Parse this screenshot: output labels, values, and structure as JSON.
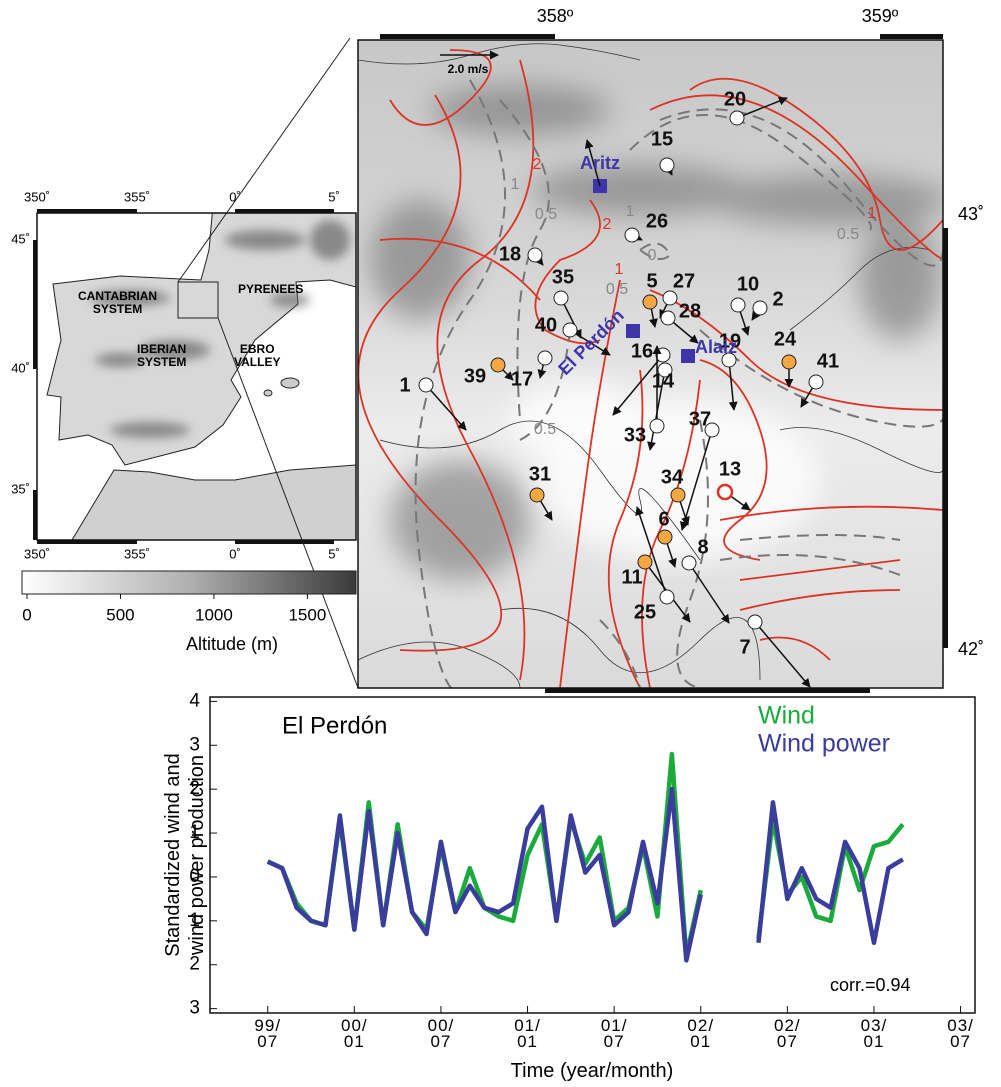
{
  "inset": {
    "lon_labels": [
      "350˚",
      "355˚",
      "0˚",
      "5˚"
    ],
    "lat_labels": [
      "45˚",
      "40˚",
      "35˚"
    ],
    "regions": [
      "CANTABRIAN\nSYSTEM",
      "PYRENEES",
      "IBERIAN\nSYSTEM",
      "EBRO\nVALLEY"
    ]
  },
  "colorbar": {
    "lim": [
      0,
      1760
    ],
    "ticks": [
      0,
      500,
      1000,
      1500
    ],
    "label": "Altitude (m)"
  },
  "map": {
    "lon_labels": [
      "358º",
      "359º"
    ],
    "lat_labels": [
      "43˚",
      "42˚"
    ],
    "scale_label": "2.0 m/s",
    "sites": [
      "Aritz",
      "El Perdón",
      "Alaiz"
    ],
    "stations": [
      {
        "label": "20",
        "color": "#ffffff"
      },
      {
        "label": "15",
        "color": "#ffffff"
      },
      {
        "label": "26",
        "color": "#ffffff"
      },
      {
        "label": "18",
        "color": "#ffffff"
      },
      {
        "label": "35",
        "color": "#ffffff"
      },
      {
        "label": "5",
        "color": "#f5a742"
      },
      {
        "label": "27",
        "color": "#ffffff"
      },
      {
        "label": "28",
        "color": "#ffffff"
      },
      {
        "label": "10",
        "color": "#ffffff"
      },
      {
        "label": "2",
        "color": "#ffffff"
      },
      {
        "label": "40",
        "color": "#ffffff"
      },
      {
        "label": "16",
        "color": "#ffffff"
      },
      {
        "label": "14",
        "color": "#ffffff"
      },
      {
        "label": "19",
        "color": "#ffffff"
      },
      {
        "label": "24",
        "color": "#f5a742"
      },
      {
        "label": "41",
        "color": "#ffffff"
      },
      {
        "label": "39",
        "color": "#f5a742"
      },
      {
        "label": "17",
        "color": "#ffffff"
      },
      {
        "label": "1",
        "color": "#ffffff"
      },
      {
        "label": "33",
        "color": "#ffffff"
      },
      {
        "label": "37",
        "color": "#ffffff"
      },
      {
        "label": "34",
        "color": "#f5a742"
      },
      {
        "label": "13",
        "color": "#ffffff"
      },
      {
        "label": "31",
        "color": "#f5a742"
      },
      {
        "label": "6",
        "color": "#f5a742"
      },
      {
        "label": "8",
        "color": "#ffffff"
      },
      {
        "label": "11",
        "color": "#f5a742"
      },
      {
        "label": "25",
        "color": "#ffffff"
      },
      {
        "label": "7",
        "color": "#ffffff"
      }
    ],
    "contour_labels": [
      "2",
      "1",
      "0.5",
      "2",
      "1",
      "0",
      "1",
      "0.5",
      "1",
      "0.5",
      "0.5"
    ]
  },
  "chart_data": {
    "type": "line",
    "title": "El Perdón",
    "x_label": "Time (year/month)",
    "y_label": "Standardized wind and\nwind power production",
    "annotation": "corr.=0.94",
    "x": [
      "1999-07",
      "1999-08",
      "1999-09",
      "1999-10",
      "1999-11",
      "1999-12",
      "2000-01",
      "2000-02",
      "2000-03",
      "2000-04",
      "2000-05",
      "2000-06",
      "2000-07",
      "2000-08",
      "2000-09",
      "2000-10",
      "2000-11",
      "2000-12",
      "2001-01",
      "2001-02",
      "2001-03",
      "2001-04",
      "2001-05",
      "2001-06",
      "2001-07",
      "2001-08",
      "2001-09",
      "2001-10",
      "2001-11",
      "2001-12",
      "2002-01",
      "2002-02",
      "2002-03",
      "2002-04",
      "2002-05",
      "2002-06",
      "2002-07",
      "2002-08",
      "2002-09",
      "2002-10",
      "2002-11",
      "2002-12",
      "2003-01",
      "2003-02",
      "2003-03"
    ],
    "series": [
      {
        "name": "Wind",
        "color": "#1aab3c",
        "values": [
          0.35,
          0.2,
          -0.6,
          -1.0,
          -1.1,
          1.3,
          -1.2,
          1.7,
          -1.1,
          1.2,
          -0.8,
          -1.2,
          0.7,
          -0.8,
          0.2,
          -0.7,
          -0.9,
          -1.0,
          0.5,
          1.2,
          -1.0,
          1.3,
          0.3,
          0.9,
          -1.0,
          -0.7,
          0.7,
          -0.9,
          2.8,
          -1.8,
          -0.3,
          null,
          null,
          null,
          -1.4,
          1.3,
          -0.4,
          0.0,
          -0.9,
          -1.0,
          0.7,
          -0.3,
          0.7,
          0.8,
          1.2
        ]
      },
      {
        "name": "Wind power",
        "color": "#3b3d9c",
        "values": [
          0.35,
          0.2,
          -0.7,
          -1.0,
          -1.1,
          1.4,
          -1.2,
          1.5,
          -1.1,
          1.0,
          -0.8,
          -1.3,
          0.8,
          -0.8,
          -0.2,
          -0.7,
          -0.8,
          -0.6,
          1.1,
          1.6,
          -1.0,
          1.4,
          0.1,
          0.5,
          -1.1,
          -0.8,
          0.8,
          -0.6,
          2.0,
          -1.9,
          -0.4,
          null,
          null,
          null,
          -1.5,
          1.7,
          -0.5,
          0.2,
          -0.5,
          -0.7,
          0.8,
          0.2,
          -1.5,
          0.2,
          0.4
        ]
      }
    ],
    "xlim": [
      "1999-03",
      "2003-08"
    ],
    "xticks": [
      {
        "value": "1999-07",
        "label": "99/\n07"
      },
      {
        "value": "2000-01",
        "label": "00/\n01"
      },
      {
        "value": "2000-07",
        "label": "00/\n07"
      },
      {
        "value": "2001-01",
        "label": "01/\n01"
      },
      {
        "value": "2001-07",
        "label": "01/\n07"
      },
      {
        "value": "2002-01",
        "label": "02/\n01"
      },
      {
        "value": "2002-07",
        "label": "02/\n07"
      },
      {
        "value": "2003-01",
        "label": "03/\n01"
      },
      {
        "value": "2003-07",
        "label": "03/\n07"
      }
    ],
    "ylim": [
      -3.1,
      4.1
    ],
    "yticks": [
      4,
      3,
      2,
      1,
      0,
      {
        "value": -1,
        "label": "1"
      },
      {
        "value": -2,
        "label": "2"
      },
      {
        "value": -3,
        "label": "3"
      }
    ],
    "grid": false
  }
}
